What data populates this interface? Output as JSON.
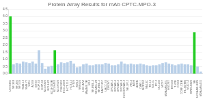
{
  "chart_data": {
    "type": "bar",
    "title": "Protein Array Results for mAb CPTC-MPO-3",
    "categories": [
      "U373-MG",
      "SF-268",
      "SF-295",
      "SF-539",
      "SNB-19",
      "SNB-75",
      "U251",
      "A-549",
      "EKVX",
      "HOP-62",
      "HOP-92",
      "NCI-H226",
      "NCI-H23",
      "NCI-H322M",
      "NCI-H460",
      "NCI-H522",
      "COLO205",
      "HCC-2998",
      "HCT-116",
      "HCT-15",
      "HT29",
      "KM12",
      "SW-620",
      "LOX-IMVI",
      "MALME-3M",
      "M14",
      "SK-MEL-2",
      "SK-MEL-28",
      "SK-MEL-5",
      "UACC-257",
      "UACC-62",
      "IGROV1",
      "OVCAR-3",
      "OVCAR-4",
      "OVCAR-5",
      "OVCAR-8",
      "NCI/OVCAR-3",
      "SK-OV-3",
      "786-0",
      "A498",
      "ACHN",
      "CAKI-1",
      "RXF393",
      "SN12C",
      "TK-10",
      "UO-31",
      "PC-3",
      "DU-145",
      "MCF7",
      "MDA-MB-231",
      "HS578T",
      "BT-549",
      "T-47D",
      "K-562",
      "CCRF-CEM",
      "HL-60(TB)",
      "MOLT-4",
      "RPMI-8226",
      "SR",
      "NCI/ADR-RES",
      "MDA-MB-435"
    ],
    "values": [
      4.0,
      0.65,
      0.75,
      0.7,
      0.85,
      0.8,
      0.75,
      0.85,
      0.7,
      1.65,
      0.75,
      0.35,
      0.5,
      0.55,
      1.65,
      0.65,
      0.8,
      0.75,
      0.8,
      0.9,
      0.7,
      0.45,
      0.5,
      0.65,
      0.7,
      0.6,
      0.6,
      0.65,
      0.65,
      0.65,
      0.75,
      0.7,
      0.6,
      0.6,
      0.65,
      0.85,
      0.7,
      0.65,
      0.7,
      0.65,
      0.65,
      0.7,
      0.65,
      0.6,
      0.55,
      0.6,
      0.6,
      0.65,
      0.75,
      0.8,
      0.7,
      0.65,
      0.6,
      0.65,
      0.7,
      0.65,
      0.65,
      0.6,
      2.9,
      0.5,
      0.15
    ],
    "colors": [
      "#22cc22",
      "#b8cfe8",
      "#b8cfe8",
      "#b8cfe8",
      "#b8cfe8",
      "#b8cfe8",
      "#b8cfe8",
      "#b8cfe8",
      "#b8cfe8",
      "#b8cfe8",
      "#b8cfe8",
      "#b8cfe8",
      "#b8cfe8",
      "#b8cfe8",
      "#22cc22",
      "#b8cfe8",
      "#b8cfe8",
      "#b8cfe8",
      "#b8cfe8",
      "#b8cfe8",
      "#b8cfe8",
      "#b8cfe8",
      "#b8cfe8",
      "#b8cfe8",
      "#b8cfe8",
      "#b8cfe8",
      "#b8cfe8",
      "#b8cfe8",
      "#b8cfe8",
      "#b8cfe8",
      "#b8cfe8",
      "#b8cfe8",
      "#b8cfe8",
      "#b8cfe8",
      "#b8cfe8",
      "#b8cfe8",
      "#b8cfe8",
      "#b8cfe8",
      "#b8cfe8",
      "#b8cfe8",
      "#b8cfe8",
      "#b8cfe8",
      "#b8cfe8",
      "#b8cfe8",
      "#b8cfe8",
      "#b8cfe8",
      "#b8cfe8",
      "#b8cfe8",
      "#b8cfe8",
      "#b8cfe8",
      "#b8cfe8",
      "#b8cfe8",
      "#b8cfe8",
      "#b8cfe8",
      "#b8cfe8",
      "#b8cfe8",
      "#b8cfe8",
      "#b8cfe8",
      "#22cc22",
      "#b8cfe8",
      "#b8cfe8"
    ],
    "ylim": [
      0.0,
      4.5
    ],
    "yticks": [
      {
        "value": 0.0,
        "label": "0.0"
      },
      0.5,
      {
        "value": 1.0,
        "label": "1.0"
      },
      1.5,
      {
        "value": 2.0,
        "label": "2.0"
      },
      2.5,
      {
        "value": 3.0,
        "label": "3.0"
      },
      3.5,
      {
        "value": 4.0,
        "label": "4.0"
      },
      4.5
    ],
    "grid": true
  }
}
